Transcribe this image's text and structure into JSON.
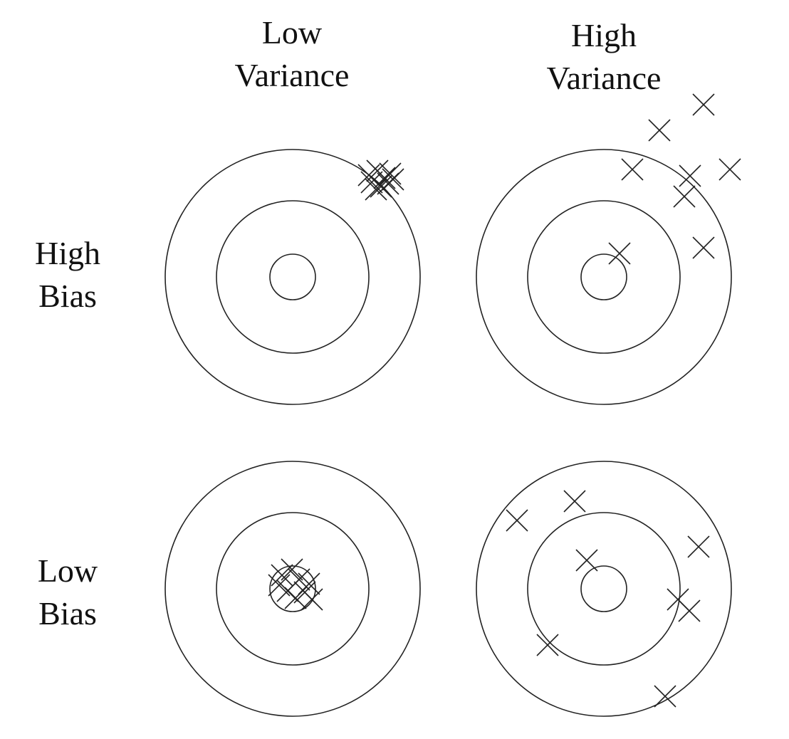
{
  "columns": [
    {
      "line1": "Low",
      "line2": "Variance"
    },
    {
      "line1": "High",
      "line2": "Variance"
    }
  ],
  "rows": [
    {
      "line1": "High",
      "line2": "Bias"
    },
    {
      "line1": "Low",
      "line2": "Bias"
    }
  ],
  "colors": {
    "stroke": "#222222",
    "background": "#ffffff"
  }
}
